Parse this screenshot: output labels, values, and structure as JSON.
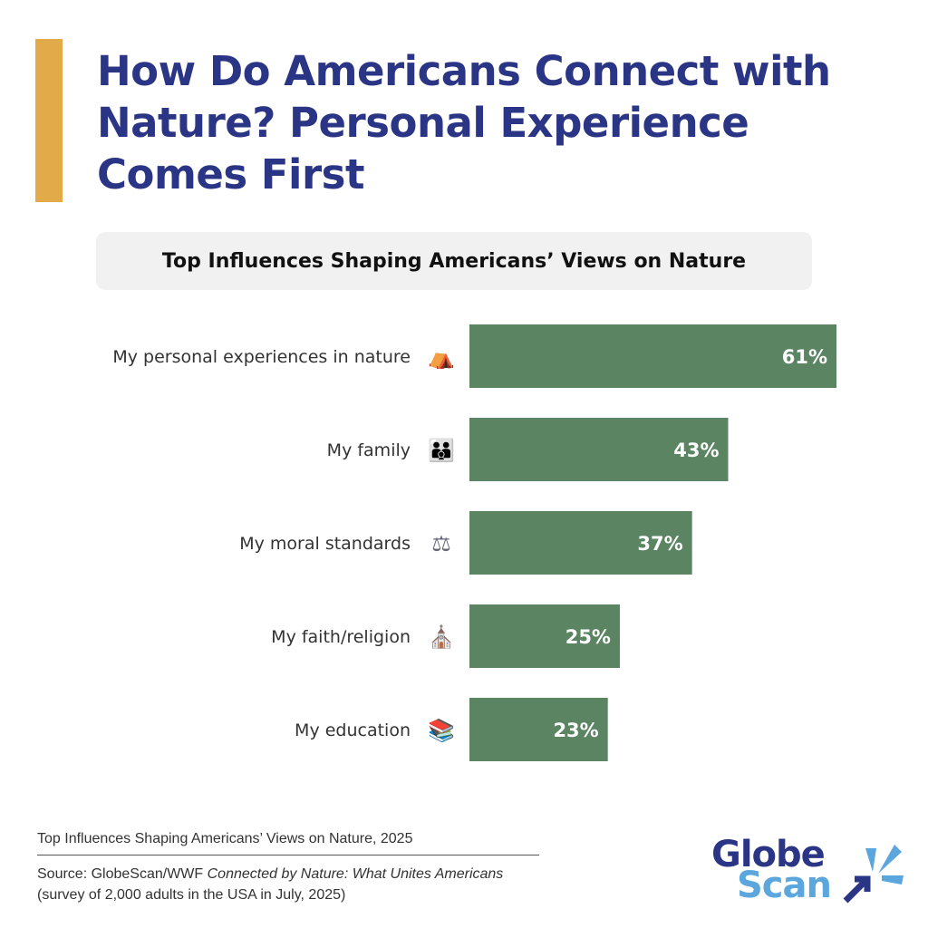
{
  "title": "How Do Americans Connect with Nature? Personal Experience Comes First",
  "chart_data": {
    "type": "bar",
    "orientation": "horizontal",
    "title": "Top Influences Shaping Americans’ Views on Nature",
    "categories": [
      "My personal experiences in nature",
      "My family",
      "My moral standards",
      "My faith/religion",
      "My education"
    ],
    "values": [
      61,
      43,
      37,
      25,
      23
    ],
    "labels": [
      "61%",
      "43%",
      "37%",
      "25%",
      "23%"
    ],
    "icons": [
      "camping-tent-icon",
      "family-icon",
      "scales-icon",
      "church-icon",
      "books-icon"
    ],
    "icon_glyphs": [
      "⛺",
      "👪",
      "⚖",
      "⛪",
      "📚"
    ],
    "xlim": [
      0,
      61
    ],
    "bar_color": "#5b8462"
  },
  "footer": {
    "caption": "Top Influences Shaping Americans’ Views on Nature, 2025",
    "source_prefix": "Source:  GlobeScan/WWF ",
    "source_title": "Connected by Nature: What Unites Americans",
    "source_suffix": " (survey of 2,000 adults in the USA in July, 2025)"
  },
  "logo": {
    "line1": "Globe",
    "line2": "Scan"
  }
}
